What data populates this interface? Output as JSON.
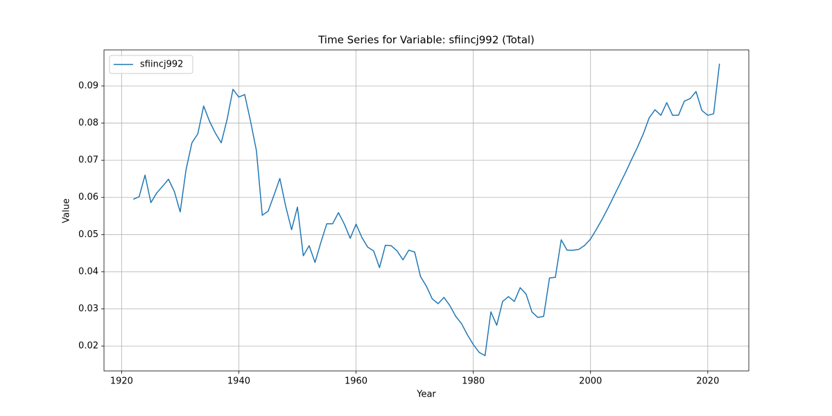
{
  "chart_data": {
    "type": "line",
    "title": "Time Series for Variable: sfiincj992 (Total)",
    "x_label": "Year",
    "y_label": "Value",
    "x": [
      1922,
      1923,
      1924,
      1925,
      1926,
      1927,
      1928,
      1929,
      1930,
      1931,
      1932,
      1933,
      1934,
      1935,
      1936,
      1937,
      1938,
      1939,
      1940,
      1941,
      1942,
      1943,
      1944,
      1945,
      1946,
      1947,
      1948,
      1949,
      1950,
      1951,
      1952,
      1953,
      1954,
      1955,
      1956,
      1957,
      1958,
      1959,
      1960,
      1961,
      1962,
      1963,
      1964,
      1965,
      1966,
      1967,
      1968,
      1969,
      1970,
      1971,
      1972,
      1973,
      1974,
      1975,
      1976,
      1977,
      1978,
      1979,
      1980,
      1981,
      1982,
      1983,
      1984,
      1985,
      1986,
      1987,
      1988,
      1989,
      1990,
      1991,
      1992,
      1993,
      1994,
      1995,
      1996,
      1997,
      1998,
      1999,
      2000,
      2001,
      2002,
      2003,
      2004,
      2005,
      2006,
      2007,
      2008,
      2009,
      2010,
      2011,
      2012,
      2013,
      2014,
      2015,
      2016,
      2017,
      2018,
      2019,
      2020,
      2021,
      2022
    ],
    "series": [
      {
        "name": "sfiincj992",
        "color": "#1f77b4",
        "values": [
          0.0595,
          0.0602,
          0.066,
          0.0586,
          0.0612,
          0.063,
          0.0649,
          0.0616,
          0.0561,
          0.0675,
          0.0747,
          0.0771,
          0.0846,
          0.0805,
          0.0773,
          0.0747,
          0.081,
          0.0891,
          0.087,
          0.0877,
          0.0805,
          0.0726,
          0.0552,
          0.0563,
          0.0606,
          0.0651,
          0.0576,
          0.0513,
          0.0574,
          0.0443,
          0.047,
          0.0425,
          0.0479,
          0.0529,
          0.0529,
          0.0559,
          0.0528,
          0.049,
          0.0528,
          0.0492,
          0.0466,
          0.0456,
          0.0411,
          0.0471,
          0.047,
          0.0456,
          0.0432,
          0.0458,
          0.0453,
          0.0387,
          0.0361,
          0.0327,
          0.0314,
          0.0331,
          0.0309,
          0.028,
          0.026,
          0.023,
          0.0204,
          0.0183,
          0.0174,
          0.0292,
          0.0256,
          0.032,
          0.0333,
          0.032,
          0.0357,
          0.034,
          0.0292,
          0.0277,
          0.028,
          0.0383,
          0.0385,
          0.0486,
          0.0458,
          0.0458,
          0.046,
          0.0471,
          0.0488,
          0.0514,
          0.0542,
          0.0572,
          0.0604,
          0.0636,
          0.0668,
          0.0702,
          0.0735,
          0.0771,
          0.0814,
          0.0836,
          0.0821,
          0.0855,
          0.0821,
          0.0821,
          0.0859,
          0.0866,
          0.0885,
          0.0834,
          0.0821,
          0.0825,
          0.096
        ]
      }
    ],
    "xlim": [
      1917,
      2027
    ],
    "ylim": [
      0.0133,
      0.0997
    ],
    "xticks": [
      1920,
      1940,
      1960,
      1980,
      2000,
      2020
    ],
    "yticks": [
      0.02,
      0.03,
      0.04,
      0.05,
      0.06,
      0.07,
      0.08,
      0.09
    ],
    "grid": true,
    "legend": "upper-left"
  }
}
